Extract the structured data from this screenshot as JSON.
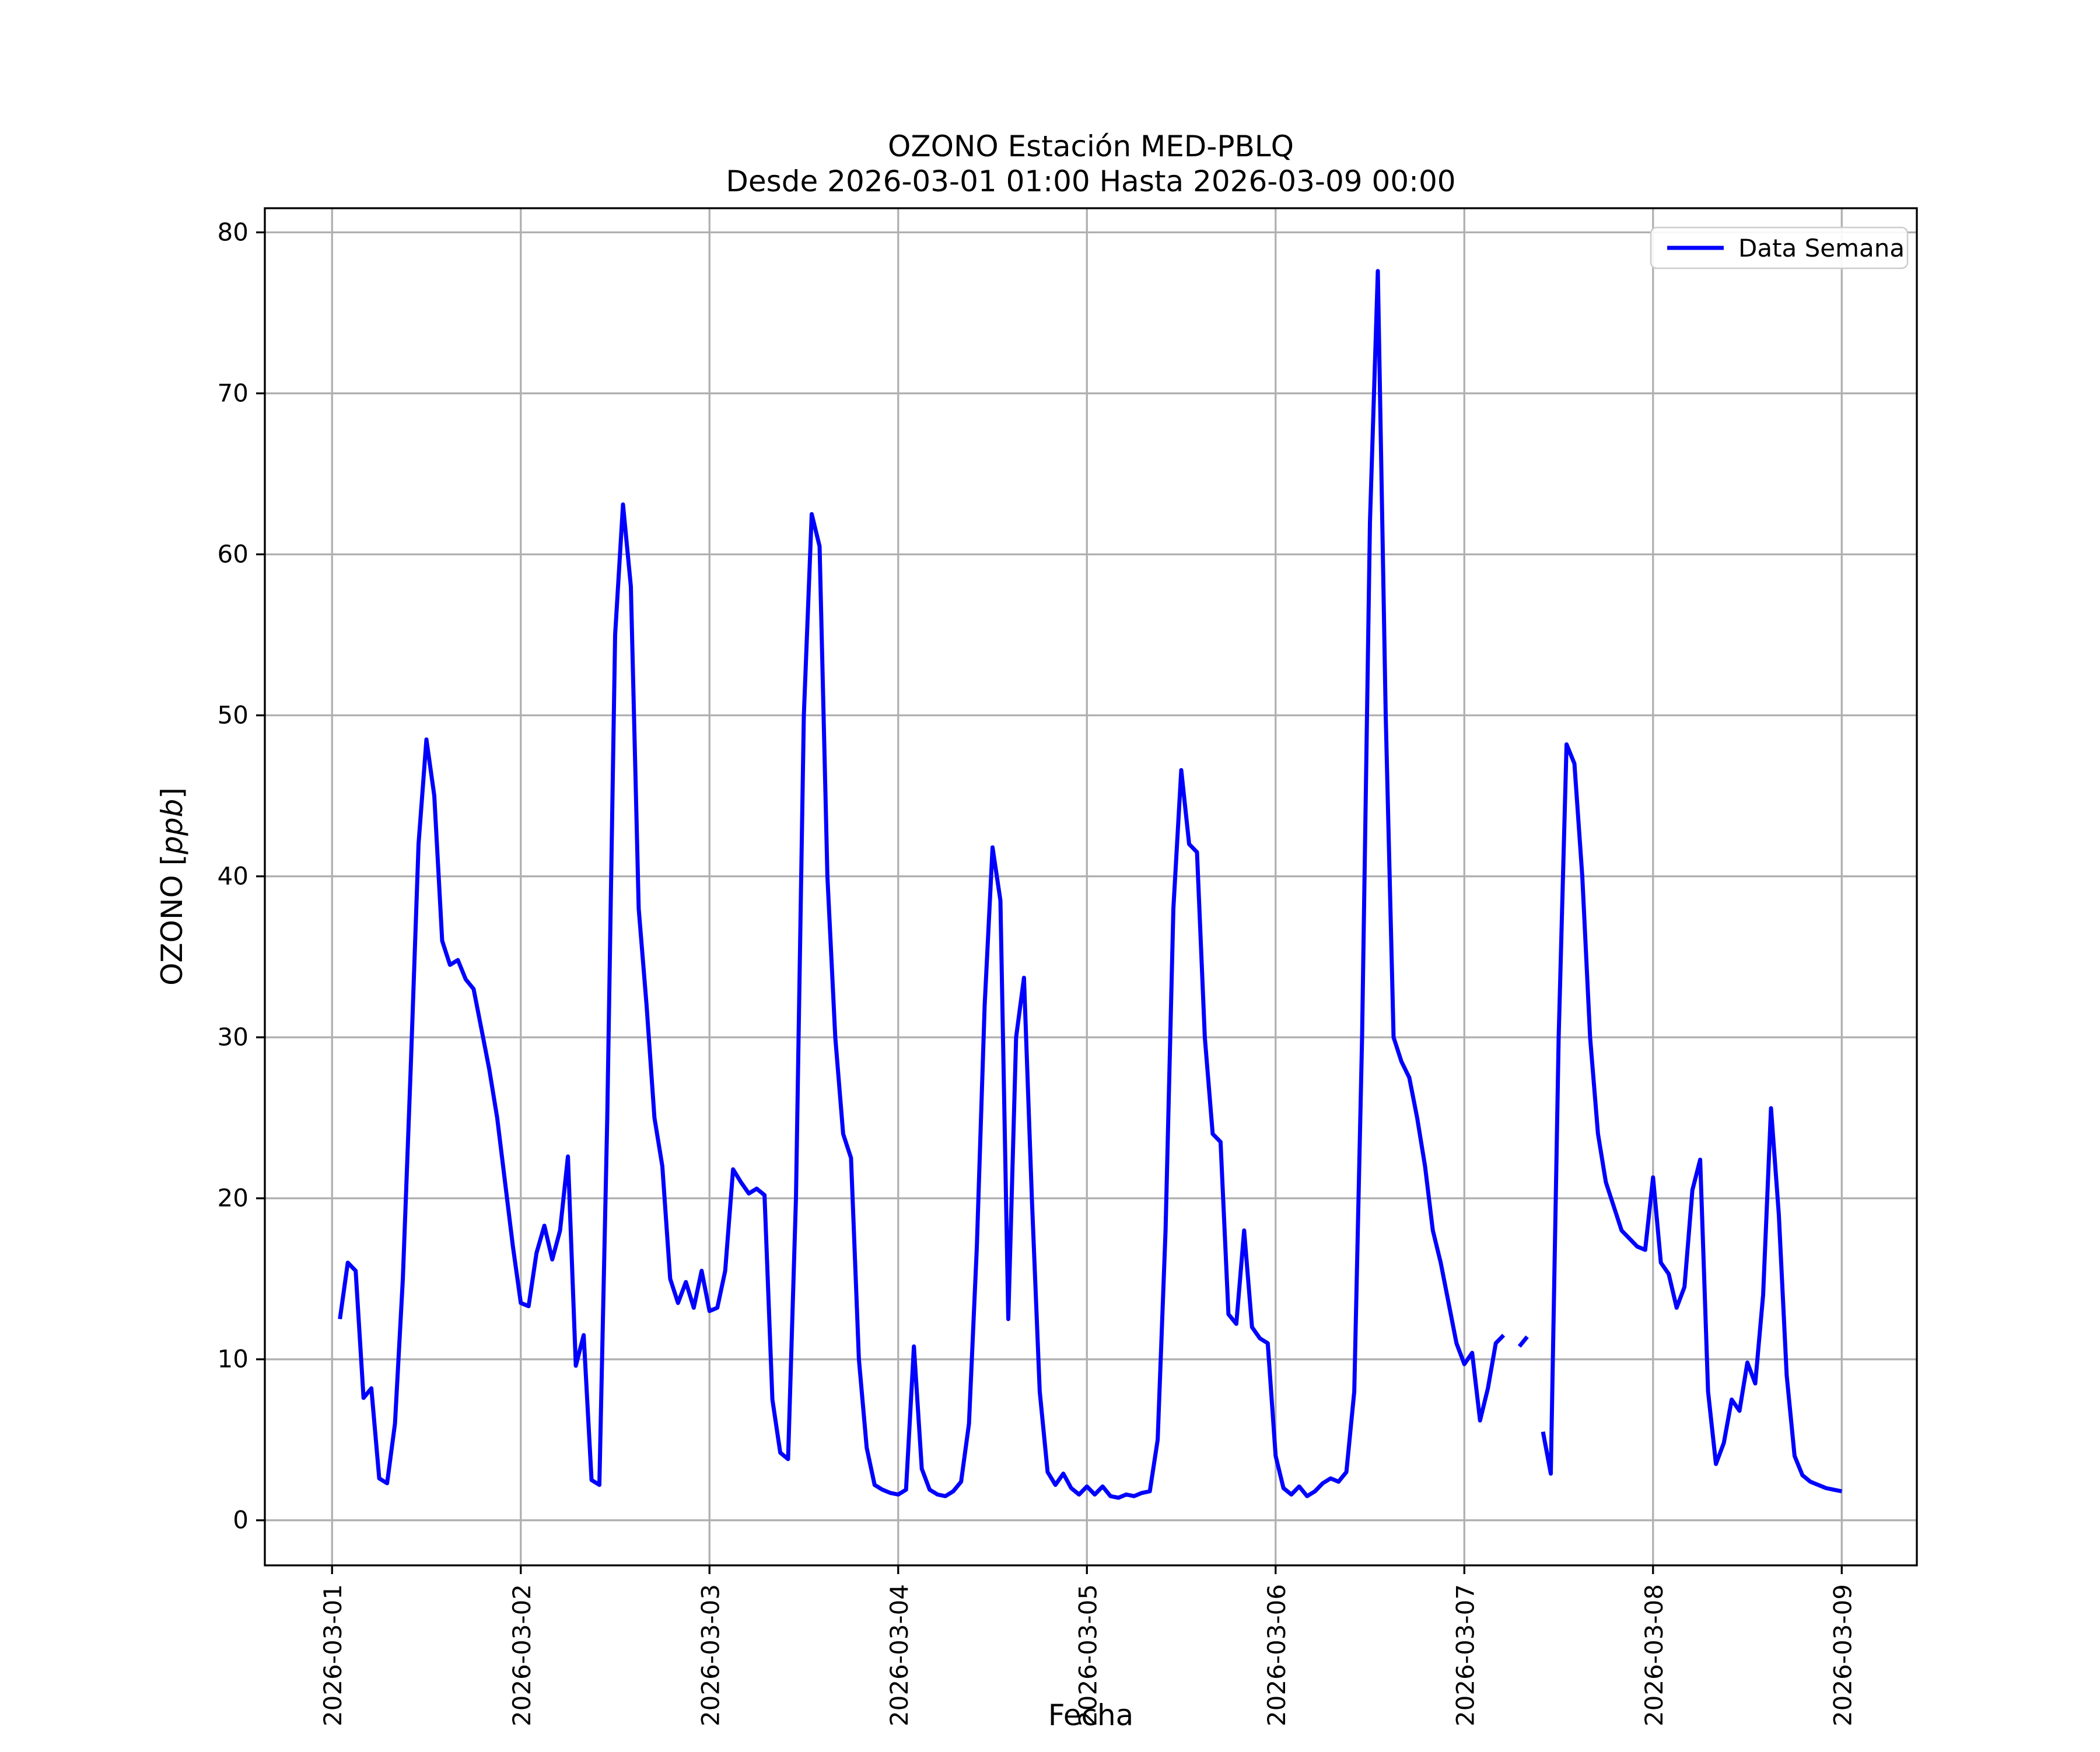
{
  "chart_data": {
    "type": "line",
    "title": "OZONO Estación MED-PBLQ",
    "subtitle": "Desde 2026-03-01 01:00 Hasta 2026-03-09 00:00",
    "xlabel": "Fecha",
    "ylabel": "OZONO [ppb]",
    "ylabel_prefix": "OZONO [",
    "ylabel_unit": "ppb",
    "ylabel_suffix": "]",
    "legend_label": "Data Semana",
    "line_color": "#0000ff",
    "grid": true,
    "legend_position": "upper right",
    "x_start": "2026-03-01 01:00",
    "interval_hours": 1,
    "x_ticks": [
      "2026-03-01",
      "2026-03-02",
      "2026-03-03",
      "2026-03-04",
      "2026-03-05",
      "2026-03-06",
      "2026-03-07",
      "2026-03-08",
      "2026-03-09"
    ],
    "x_tick_hours": [
      -1,
      23,
      47,
      71,
      95,
      119,
      143,
      167,
      191
    ],
    "y_ticks": [
      0,
      10,
      20,
      30,
      40,
      50,
      60,
      70,
      80
    ],
    "xlim_hours": [
      -9.55,
      200.55
    ],
    "ylim": [
      -2.8,
      81.5
    ],
    "values": [
      12.5,
      16.0,
      15.5,
      7.6,
      8.2,
      2.6,
      2.3,
      6.0,
      15.0,
      28.0,
      42.0,
      48.5,
      45.0,
      36.0,
      34.5,
      34.8,
      33.6,
      33.0,
      30.5,
      28.0,
      25.0,
      21.0,
      17.0,
      13.5,
      13.3,
      16.6,
      18.3,
      16.2,
      18.0,
      22.6,
      9.6,
      11.5,
      2.5,
      2.2,
      25.0,
      55.0,
      63.1,
      58.0,
      38.0,
      32.0,
      25.0,
      22.0,
      15.0,
      13.5,
      14.8,
      13.2,
      15.5,
      13.0,
      13.2,
      15.5,
      21.8,
      21.0,
      20.3,
      20.6,
      20.2,
      7.5,
      4.2,
      3.8,
      20.0,
      50.0,
      62.5,
      60.5,
      40.0,
      30.0,
      24.0,
      22.5,
      10.0,
      4.5,
      2.2,
      1.9,
      1.7,
      1.6,
      1.9,
      10.8,
      3.2,
      1.9,
      1.6,
      1.5,
      1.8,
      2.4,
      6.0,
      17.0,
      32.0,
      41.8,
      38.5,
      12.5,
      30.0,
      33.7,
      20.0,
      8.0,
      3.0,
      2.2,
      2.9,
      2.0,
      1.6,
      2.1,
      1.6,
      2.1,
      1.5,
      1.4,
      1.6,
      1.5,
      1.7,
      1.8,
      5.0,
      18.0,
      38.0,
      46.6,
      42.0,
      41.5,
      30.0,
      24.0,
      23.5,
      12.8,
      12.2,
      18.0,
      12.0,
      11.3,
      11.0,
      4.0,
      2.0,
      1.6,
      2.1,
      1.5,
      1.8,
      2.3,
      2.6,
      2.4,
      3.0,
      8.0,
      30.0,
      62.0,
      77.6,
      50.0,
      30.0,
      28.5,
      27.5,
      25.0,
      22.0,
      18.0,
      16.0,
      13.5,
      11.0,
      9.7,
      10.4,
      6.2,
      8.2,
      11.0,
      11.5,
      null,
      10.8,
      11.4,
      null,
      5.5,
      2.9,
      30.0,
      48.2,
      47.0,
      40.0,
      30.0,
      24.0,
      21.0,
      19.5,
      18.0,
      17.5,
      17.0,
      16.8,
      21.3,
      16.0,
      15.3,
      13.2,
      14.5,
      20.5,
      22.4,
      8.0,
      3.5,
      4.8,
      7.5,
      6.8,
      9.8,
      8.5,
      14.0,
      25.6,
      19.0,
      9.0,
      4.0,
      2.8,
      2.4,
      2.2,
      2.0,
      1.9,
      1.8
    ]
  }
}
